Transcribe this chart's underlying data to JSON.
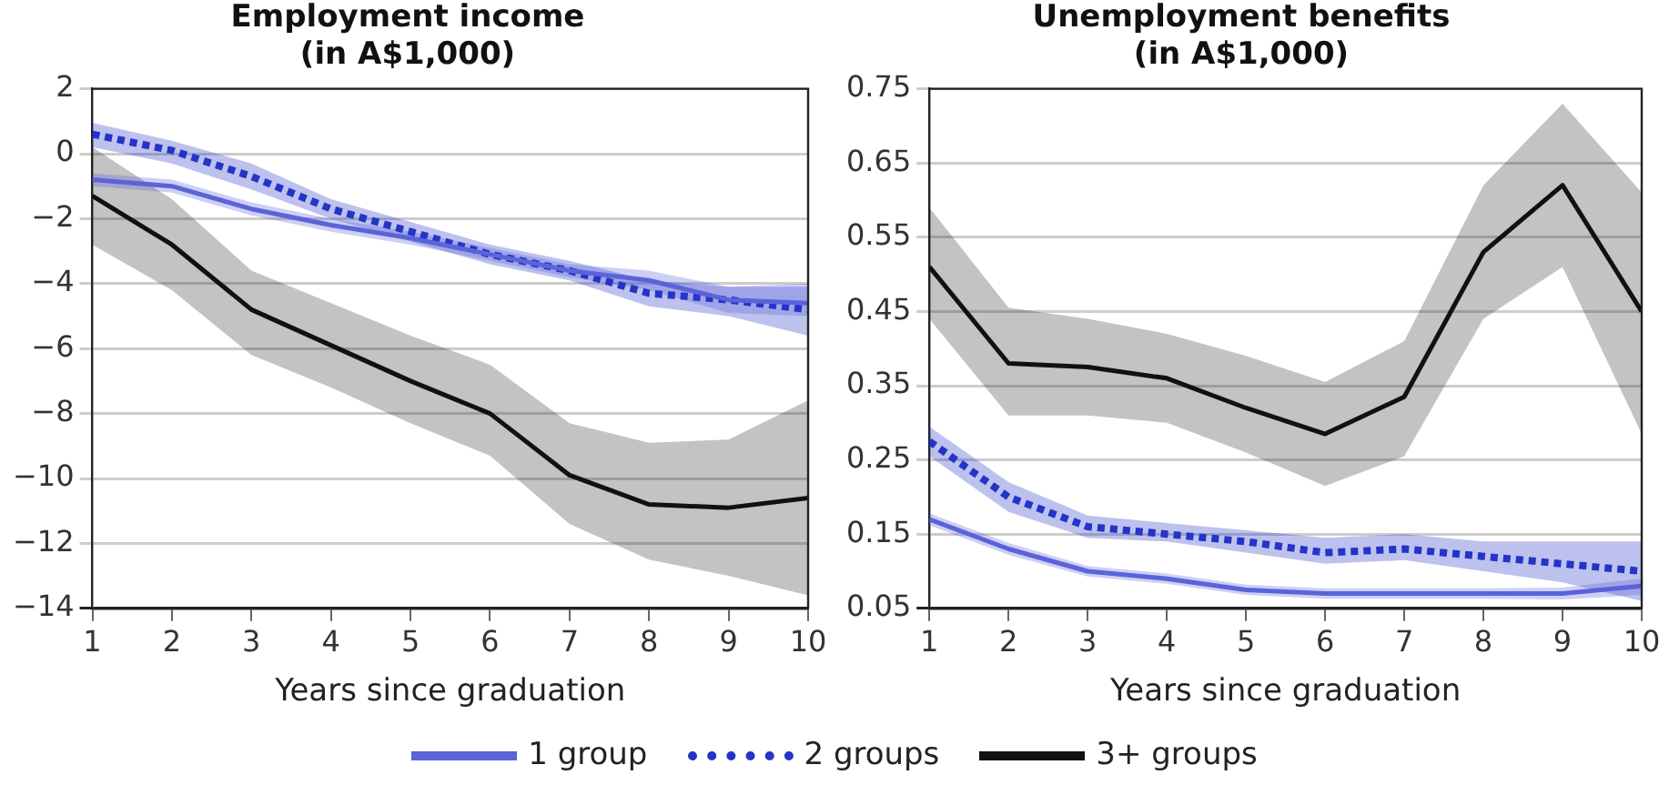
{
  "chart_data": [
    {
      "type": "line",
      "title": "Employment income\n(in A$1,000)",
      "xlabel": "Years since graduation",
      "x": [
        1,
        2,
        3,
        4,
        5,
        6,
        7,
        8,
        9,
        10
      ],
      "xlim": [
        1,
        10
      ],
      "xticks": [
        1,
        2,
        3,
        4,
        5,
        6,
        7,
        8,
        9,
        10
      ],
      "ylim": [
        -14,
        2
      ],
      "yticks": [
        -14,
        -12,
        -10,
        -8,
        -6,
        -4,
        -2,
        0,
        2
      ],
      "grid": "y",
      "legend": "bottom",
      "marker": "none",
      "series": [
        {
          "name": "1 group",
          "color": "#5b63d9",
          "line_style": "solid",
          "values": [
            -0.8,
            -1.0,
            -1.7,
            -2.2,
            -2.6,
            -3.1,
            -3.6,
            -3.9,
            -4.5,
            -4.6
          ],
          "lower": [
            -1.0,
            -1.2,
            -1.9,
            -2.4,
            -2.8,
            -3.3,
            -3.8,
            -4.2,
            -4.9,
            -5.0
          ],
          "upper": [
            -0.6,
            -0.8,
            -1.5,
            -2.0,
            -2.4,
            -2.9,
            -3.4,
            -3.6,
            -4.1,
            -4.0
          ]
        },
        {
          "name": "2 groups",
          "color": "#2433c8",
          "line_style": "dotted",
          "values": [
            0.6,
            0.1,
            -0.7,
            -1.7,
            -2.4,
            -3.1,
            -3.6,
            -4.3,
            -4.5,
            -4.8
          ],
          "lower": [
            0.2,
            -0.3,
            -1.1,
            -2.0,
            -2.7,
            -3.4,
            -3.9,
            -4.7,
            -5.0,
            -5.6
          ],
          "upper": [
            0.95,
            0.4,
            -0.3,
            -1.4,
            -2.1,
            -2.8,
            -3.3,
            -3.9,
            -4.1,
            -4.1
          ]
        },
        {
          "name": "3+ groups",
          "color": "#111111",
          "line_style": "solid",
          "values": [
            -1.3,
            -2.8,
            -4.8,
            -5.9,
            -7.0,
            -8.0,
            -9.9,
            -10.8,
            -10.9,
            -10.6
          ],
          "lower": [
            -2.8,
            -4.2,
            -6.2,
            -7.2,
            -8.3,
            -9.3,
            -11.4,
            -12.5,
            -13.0,
            -13.6
          ],
          "upper": [
            0.2,
            -1.4,
            -3.6,
            -4.6,
            -5.6,
            -6.5,
            -8.3,
            -8.9,
            -8.8,
            -7.6
          ]
        }
      ]
    },
    {
      "type": "line",
      "title": "Unemployment benefits\n(in A$1,000)",
      "xlabel": "Years since graduation",
      "x": [
        1,
        2,
        3,
        4,
        5,
        6,
        7,
        8,
        9,
        10
      ],
      "xlim": [
        1,
        10
      ],
      "xticks": [
        1,
        2,
        3,
        4,
        5,
        6,
        7,
        8,
        9,
        10
      ],
      "ylim": [
        0.05,
        0.75
      ],
      "yticks": [
        0.05,
        0.15,
        0.25,
        0.35,
        0.45,
        0.55,
        0.65,
        0.75
      ],
      "grid": "y",
      "marker": "none",
      "series": [
        {
          "color": "#5b63d9",
          "line_style": "solid",
          "values": [
            0.17,
            0.13,
            0.1,
            0.09,
            0.075,
            0.07,
            0.07,
            0.07,
            0.07,
            0.08
          ],
          "lower": [
            0.162,
            0.122,
            0.093,
            0.083,
            0.068,
            0.063,
            0.063,
            0.063,
            0.062,
            0.068
          ],
          "upper": [
            0.178,
            0.138,
            0.107,
            0.097,
            0.082,
            0.077,
            0.077,
            0.077,
            0.078,
            0.09
          ]
        },
        {
          "color": "#2433c8",
          "line_style": "dotted",
          "values": [
            0.275,
            0.2,
            0.16,
            0.15,
            0.14,
            0.125,
            0.13,
            0.12,
            0.11,
            0.1
          ],
          "lower": [
            0.255,
            0.18,
            0.145,
            0.14,
            0.125,
            0.11,
            0.115,
            0.1,
            0.085,
            0.06
          ],
          "upper": [
            0.295,
            0.22,
            0.175,
            0.165,
            0.155,
            0.145,
            0.15,
            0.14,
            0.14,
            0.14
          ]
        },
        {
          "color": "#111111",
          "line_style": "solid",
          "values": [
            0.51,
            0.38,
            0.375,
            0.36,
            0.32,
            0.285,
            0.335,
            0.53,
            0.62,
            0.45
          ],
          "lower": [
            0.44,
            0.31,
            0.31,
            0.3,
            0.26,
            0.215,
            0.255,
            0.44,
            0.51,
            0.285
          ],
          "upper": [
            0.59,
            0.455,
            0.44,
            0.42,
            0.39,
            0.355,
            0.41,
            0.62,
            0.73,
            0.61
          ]
        }
      ]
    }
  ]
}
